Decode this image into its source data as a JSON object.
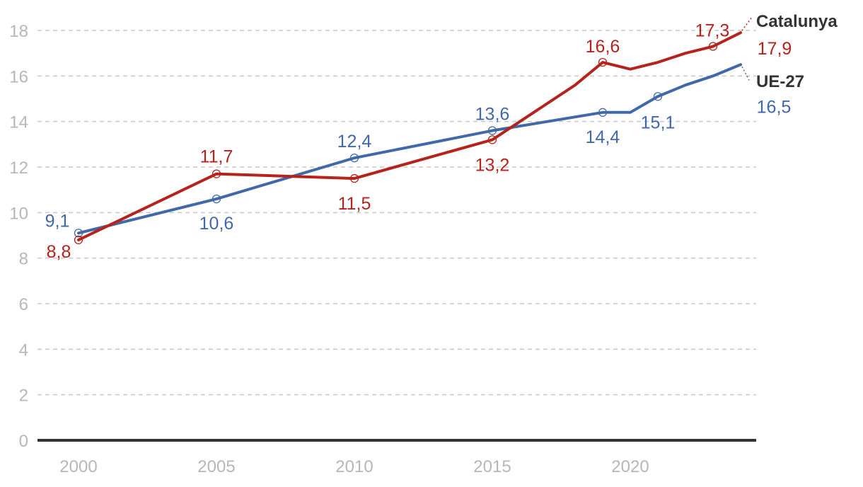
{
  "chart_data": {
    "type": "line",
    "title": "",
    "xlabel": "",
    "ylabel": "",
    "xlim": [
      1999,
      2025
    ],
    "ylim": [
      0,
      18
    ],
    "grid": true,
    "x_ticks": [
      "2000",
      "2005",
      "2010",
      "2015",
      "2020"
    ],
    "y_ticks": [
      "0",
      "2",
      "4",
      "6",
      "8",
      "10",
      "12",
      "14",
      "16",
      "18"
    ],
    "series": [
      {
        "name": "UE-27",
        "color": "#4169aa",
        "x": [
          2000,
          2005,
          2010,
          2015,
          2019,
          2020,
          2021,
          2022,
          2023,
          2024
        ],
        "values": [
          9.1,
          10.6,
          12.4,
          13.6,
          14.4,
          14.4,
          15.1,
          15.6,
          16.0,
          16.5
        ],
        "labels": [
          {
            "x": 2000,
            "y": 9.1,
            "text": "9,1"
          },
          {
            "x": 2005,
            "y": 10.6,
            "text": "10,6"
          },
          {
            "x": 2010,
            "y": 12.4,
            "text": "12,4"
          },
          {
            "x": 2015,
            "y": 13.6,
            "text": "13,6"
          },
          {
            "x": 2019,
            "y": 14.4,
            "text": "14,4"
          },
          {
            "x": 2021,
            "y": 15.1,
            "text": "15,1"
          },
          {
            "x": 2024,
            "y": 16.5,
            "text": "16,5"
          }
        ]
      },
      {
        "name": "Catalunya",
        "color": "#b5231d",
        "x": [
          2000,
          2005,
          2010,
          2015,
          2018,
          2019,
          2020,
          2021,
          2022,
          2023,
          2024
        ],
        "values": [
          8.8,
          11.7,
          11.5,
          13.2,
          15.6,
          16.6,
          16.3,
          16.6,
          17.0,
          17.3,
          17.9
        ],
        "labels": [
          {
            "x": 2000,
            "y": 8.8,
            "text": "8,8"
          },
          {
            "x": 2005,
            "y": 11.7,
            "text": "11,7"
          },
          {
            "x": 2010,
            "y": 11.5,
            "text": "11,5"
          },
          {
            "x": 2015,
            "y": 13.2,
            "text": "13,2"
          },
          {
            "x": 2019,
            "y": 16.6,
            "text": "16,6"
          },
          {
            "x": 2023,
            "y": 17.3,
            "text": "17,3"
          },
          {
            "x": 2024,
            "y": 17.9,
            "text": "17,9"
          }
        ]
      }
    ]
  }
}
